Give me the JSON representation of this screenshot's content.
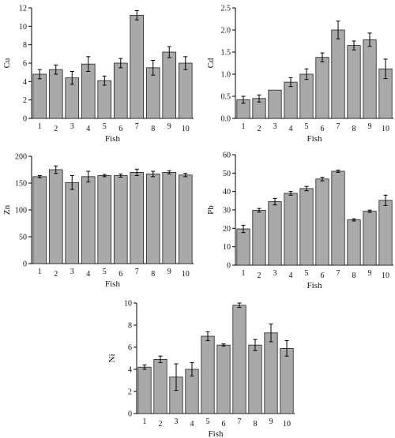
{
  "chart_data": [
    {
      "type": "bar",
      "xlabel": "Fish",
      "ylabel": "Cu",
      "categories": [
        "1",
        "2",
        "3",
        "4",
        "5",
        "6",
        "7",
        "8",
        "9",
        "10"
      ],
      "values": [
        4.8,
        5.3,
        4.4,
        5.9,
        4.1,
        6.0,
        11.2,
        5.5,
        7.2,
        6.0
      ],
      "errors": [
        0.5,
        0.5,
        0.7,
        0.8,
        0.5,
        0.5,
        0.5,
        0.8,
        0.6,
        0.7
      ],
      "ylim": [
        0,
        12
      ],
      "yticks": [
        "0",
        "2",
        "4",
        "6",
        "8",
        "10",
        "12"
      ]
    },
    {
      "type": "bar",
      "xlabel": "Fish",
      "ylabel": "Cd",
      "categories": [
        "1",
        "2",
        "3",
        "4",
        "5",
        "6",
        "7",
        "8",
        "9",
        "10"
      ],
      "values": [
        0.42,
        0.45,
        0.64,
        0.82,
        1.0,
        1.38,
        2.0,
        1.65,
        1.78,
        1.12
      ],
      "errors": [
        0.08,
        0.08,
        0.0,
        0.1,
        0.12,
        0.1,
        0.2,
        0.1,
        0.15,
        0.22
      ],
      "ylim": [
        0,
        2.5
      ],
      "yticks": [
        "0.0",
        "0.5",
        "1.0",
        "1.5",
        "2.0",
        "2.5"
      ]
    },
    {
      "type": "bar",
      "xlabel": "Fish",
      "ylabel": "Zn",
      "categories": [
        "1",
        "2",
        "3",
        "4",
        "5",
        "6",
        "7",
        "8",
        "9",
        "10"
      ],
      "values": [
        162,
        175,
        151,
        162,
        164,
        164,
        170,
        167,
        170,
        165
      ],
      "errors": [
        2,
        7,
        13,
        10,
        2,
        3,
        6,
        5,
        3,
        3
      ],
      "ylim": [
        0,
        200
      ],
      "yticks": [
        "0",
        "50",
        "100",
        "150",
        "200"
      ]
    },
    {
      "type": "bar",
      "xlabel": "Fish",
      "ylabel": "Pb",
      "categories": [
        "1",
        "2",
        "3",
        "4",
        "5",
        "6",
        "7",
        "8",
        "9",
        "10"
      ],
      "values": [
        19.7,
        29.8,
        34.5,
        39.0,
        41.6,
        46.8,
        51.0,
        24.6,
        29.3,
        35.2
      ],
      "errors": [
        2.0,
        1.0,
        1.8,
        1.0,
        1.2,
        1.0,
        0.6,
        0.6,
        0.6,
        2.8
      ],
      "ylim": [
        0,
        60
      ],
      "yticks": [
        "0",
        "10",
        "20",
        "30",
        "40",
        "50",
        "60"
      ]
    },
    {
      "type": "bar",
      "xlabel": "Fish",
      "ylabel": "Ni",
      "categories": [
        "1",
        "2",
        "3",
        "4",
        "5",
        "6",
        "7",
        "8",
        "9",
        "10"
      ],
      "values": [
        4.2,
        4.9,
        3.3,
        4.0,
        7.0,
        6.2,
        9.8,
        6.2,
        7.3,
        5.9
      ],
      "errors": [
        0.2,
        0.3,
        1.2,
        0.6,
        0.4,
        0.1,
        0.2,
        0.5,
        0.8,
        0.7
      ],
      "ylim": [
        0,
        10
      ],
      "yticks": [
        "0",
        "2",
        "4",
        "6",
        "8",
        "10"
      ]
    }
  ]
}
